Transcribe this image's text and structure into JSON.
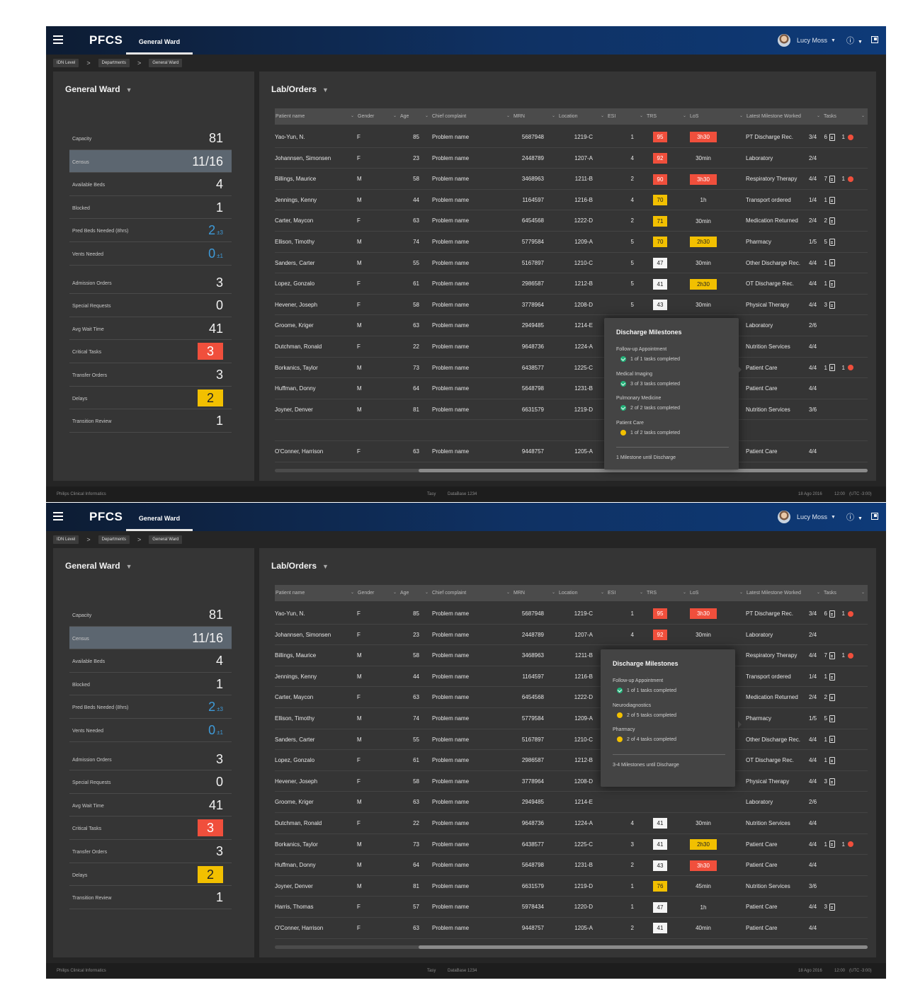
{
  "app": {
    "brand": "PFCS",
    "ward_tab": "General Ward",
    "user": "Lucy Moss",
    "info_glyph": "ⓘ",
    "breadcrumbs": [
      "IDN Level",
      "Departments",
      "General Ward"
    ],
    "left_title": "General Ward",
    "right_title": "Lab/Orders",
    "status": {
      "company": "Philips Clinical Informatics",
      "center_a": "Tasy",
      "center_b": "DataBase 1234",
      "date": "18 Ago 2016",
      "time": "12:00",
      "tz": "(UTC -3:00)"
    },
    "icons": [
      "menu-icon",
      "avatar",
      "info-icon",
      "expand-icon",
      "funnel-icon",
      "chevron-down-icon",
      "clipboard-icon",
      "alert-icon",
      "check-icon"
    ],
    "colors": {
      "red": "#f04f3c",
      "yellow": "#f2c000",
      "blue": "#3e9ad8",
      "green": "#23b37a"
    }
  },
  "kpis": [
    {
      "label": "Capacity",
      "value": "81",
      "style": "plain"
    },
    {
      "label": "Census",
      "value": "11/16",
      "style": "highlight"
    },
    {
      "label": "Available Beds",
      "value": "4",
      "style": "plain"
    },
    {
      "label": "Blocked",
      "value": "1",
      "style": "plain"
    },
    {
      "label": "Pred Beds Needed (8hrs)",
      "value": "2",
      "sub": "±3",
      "style": "blue"
    },
    {
      "label": "Vents Needed",
      "value": "0",
      "sub": "±1",
      "style": "blue"
    },
    {
      "label": "Admission Orders",
      "value": "3",
      "style": "plain",
      "gap": true
    },
    {
      "label": "Special Requests",
      "value": "0",
      "style": "plain"
    },
    {
      "label": "Avg Wait Time",
      "value": "41",
      "style": "plain"
    },
    {
      "label": "Critical Tasks",
      "value": "3",
      "style": "red"
    },
    {
      "label": "Transfer Orders",
      "value": "3",
      "style": "plain"
    },
    {
      "label": "Delays",
      "value": "2",
      "style": "yellow"
    },
    {
      "label": "Transition Review",
      "value": "1",
      "style": "plain"
    }
  ],
  "columns": [
    "Patient name",
    "Gender",
    "Age",
    "Chief complaint",
    "MRN",
    "Location",
    "ESI",
    "TRS",
    "LoS",
    "Latest Milestone Worked",
    "Tasks"
  ],
  "screen1": {
    "rows": [
      {
        "name": "Yao-Yun, N.",
        "gender": "F",
        "age": "85",
        "complaint": "Problem name",
        "mrn": "5687948",
        "loc": "1219-C",
        "esi": "1",
        "trs": "95",
        "trs_c": "red",
        "los": "3h30",
        "los_c": "red",
        "milestone": "PT Discharge Rec.",
        "frac": "3/4",
        "tasks": "6",
        "alert": "1"
      },
      {
        "name": "Johannsen, Simonsen",
        "gender": "F",
        "age": "23",
        "complaint": "Problem name",
        "mrn": "2448789",
        "loc": "1207-A",
        "esi": "4",
        "trs": "92",
        "trs_c": "red",
        "los": "30min",
        "los_c": "",
        "milestone": "Laboratory",
        "frac": "2/4",
        "tasks": "",
        "alert": ""
      },
      {
        "name": "Billings, Maurice",
        "gender": "M",
        "age": "58",
        "complaint": "Problem name",
        "mrn": "3468963",
        "loc": "1211-B",
        "esi": "2",
        "trs": "90",
        "trs_c": "red",
        "los": "3h30",
        "los_c": "red",
        "milestone": "Respiratory Therapy",
        "frac": "4/4",
        "tasks": "7",
        "alert": "1"
      },
      {
        "name": "Jennings, Kenny",
        "gender": "M",
        "age": "44",
        "complaint": "Problem name",
        "mrn": "1164597",
        "loc": "1216-B",
        "esi": "4",
        "trs": "70",
        "trs_c": "yel",
        "los": "1h",
        "los_c": "",
        "milestone": "Transport ordered",
        "frac": "1/4",
        "tasks": "1",
        "alert": ""
      },
      {
        "name": "Carter, Maycon",
        "gender": "F",
        "age": "63",
        "complaint": "Problem name",
        "mrn": "6454568",
        "loc": "1222-D",
        "esi": "2",
        "trs": "71",
        "trs_c": "yel",
        "los": "30min",
        "los_c": "",
        "milestone": "Medication Returned",
        "frac": "2/4",
        "tasks": "2",
        "alert": ""
      },
      {
        "name": "Ellison, Timothy",
        "gender": "M",
        "age": "74",
        "complaint": "Problem name",
        "mrn": "5779584",
        "loc": "1209-A",
        "esi": "5",
        "trs": "70",
        "trs_c": "yel",
        "los": "2h30",
        "los_c": "yel",
        "milestone": "Pharmacy",
        "frac": "1/5",
        "tasks": "5",
        "alert": ""
      },
      {
        "name": "Sanders, Carter",
        "gender": "M",
        "age": "55",
        "complaint": "Problem name",
        "mrn": "5167897",
        "loc": "1210-C",
        "esi": "5",
        "trs": "47",
        "trs_c": "wht",
        "los": "30min",
        "los_c": "",
        "milestone": "Other Discharge Rec.",
        "frac": "4/4",
        "tasks": "1",
        "alert": ""
      },
      {
        "name": "Lopez, Gonzalo",
        "gender": "F",
        "age": "61",
        "complaint": "Problem name",
        "mrn": "2986587",
        "loc": "1212-B",
        "esi": "5",
        "trs": "41",
        "trs_c": "wht",
        "los": "2h30",
        "los_c": "yel",
        "milestone": "OT Discharge Rec.",
        "frac": "4/4",
        "tasks": "1",
        "alert": ""
      },
      {
        "name": "Hevener, Joseph",
        "gender": "F",
        "age": "58",
        "complaint": "Problem name",
        "mrn": "3778964",
        "loc": "1208-D",
        "esi": "5",
        "trs": "43",
        "trs_c": "wht",
        "los": "30min",
        "los_c": "",
        "milestone": "Physical Therapy",
        "frac": "4/4",
        "tasks": "3",
        "alert": ""
      },
      {
        "name": "Groome, Kriger",
        "gender": "M",
        "age": "63",
        "complaint": "Problem name",
        "mrn": "2949485",
        "loc": "1214-E",
        "esi": "",
        "trs": "",
        "trs_c": "",
        "los": "",
        "los_c": "",
        "milestone": "Laboratory",
        "frac": "2/6",
        "tasks": "",
        "alert": ""
      },
      {
        "name": "Dutchman, Ronald",
        "gender": "F",
        "age": "22",
        "complaint": "Problem name",
        "mrn": "9648736",
        "loc": "1224-A",
        "esi": "",
        "trs": "",
        "trs_c": "",
        "los": "",
        "los_c": "",
        "milestone": "Nutrition Services",
        "frac": "4/4",
        "tasks": "",
        "alert": ""
      },
      {
        "name": "Borkanics, Taylor",
        "gender": "M",
        "age": "73",
        "complaint": "Problem name",
        "mrn": "6438577",
        "loc": "1225-C",
        "esi": "",
        "trs": "",
        "trs_c": "",
        "los": "",
        "los_c": "",
        "milestone": "Patient Care",
        "frac": "4/4",
        "tasks": "1",
        "alert": "1"
      },
      {
        "name": "Huffman, Donny",
        "gender": "M",
        "age": "64",
        "complaint": "Problem name",
        "mrn": "5648798",
        "loc": "1231-B",
        "esi": "",
        "trs": "",
        "trs_c": "",
        "los": "",
        "los_c": "",
        "milestone": "Patient Care",
        "frac": "4/4",
        "tasks": "",
        "alert": ""
      },
      {
        "name": "Joyner, Denver",
        "gender": "M",
        "age": "81",
        "complaint": "Problem name",
        "mrn": "6631579",
        "loc": "1219-D",
        "esi": "",
        "trs": "",
        "trs_c": "",
        "los": "",
        "los_c": "",
        "milestone": "Nutrition Services",
        "frac": "3/6",
        "tasks": "",
        "alert": ""
      },
      {
        "name": "",
        "gender": "",
        "age": "",
        "complaint": "",
        "mrn": "",
        "loc": "",
        "esi": "",
        "trs": "",
        "trs_c": "",
        "los": "",
        "los_c": "",
        "milestone": "",
        "frac": "",
        "tasks": "",
        "alert": ""
      },
      {
        "name": "O'Conner, Harrison",
        "gender": "F",
        "age": "63",
        "complaint": "Problem name",
        "mrn": "9448757",
        "loc": "1205-A",
        "esi": "",
        "trs": "",
        "trs_c": "",
        "los": "",
        "los_c": "",
        "milestone": "Patient Care",
        "frac": "4/4",
        "tasks": "",
        "alert": ""
      }
    ],
    "popup": {
      "title": "Discharge Milestones",
      "items": [
        {
          "name": "Follow-up Appointment",
          "status": "1 of 1 tasks completed",
          "state": "done"
        },
        {
          "name": "Medical Imaging",
          "status": "3 of 3 tasks completed",
          "state": "done"
        },
        {
          "name": "Pulmonary Medicine",
          "status": "2 of 2 tasks completed",
          "state": "done"
        },
        {
          "name": "Patient Care",
          "status": "1 of 2 tasks completed",
          "state": "pending"
        }
      ],
      "footer": "1 Milestone until Discharge"
    }
  },
  "screen2": {
    "rows": [
      {
        "name": "Yao-Yun, N.",
        "gender": "F",
        "age": "85",
        "complaint": "Problem name",
        "mrn": "5687948",
        "loc": "1219-C",
        "esi": "1",
        "trs": "95",
        "trs_c": "red",
        "los": "3h30",
        "los_c": "red",
        "milestone": "PT Discharge Rec.",
        "frac": "3/4",
        "tasks": "6",
        "alert": "1"
      },
      {
        "name": "Johannsen, Simonsen",
        "gender": "F",
        "age": "23",
        "complaint": "Problem name",
        "mrn": "2448789",
        "loc": "1207-A",
        "esi": "4",
        "trs": "92",
        "trs_c": "red",
        "los": "30min",
        "los_c": "",
        "milestone": "Laboratory",
        "frac": "2/4",
        "tasks": "",
        "alert": ""
      },
      {
        "name": "Billings, Maurice",
        "gender": "M",
        "age": "58",
        "complaint": "Problem name",
        "mrn": "3468963",
        "loc": "1211-B",
        "esi": "2",
        "trs": "90",
        "trs_c": "red",
        "los": "3h30",
        "los_c": "red",
        "milestone": "Respiratory Therapy",
        "frac": "4/4",
        "tasks": "7",
        "alert": "1"
      },
      {
        "name": "Jennings, Kenny",
        "gender": "M",
        "age": "44",
        "complaint": "Problem name",
        "mrn": "1164597",
        "loc": "1216-B",
        "esi": "",
        "trs": "",
        "trs_c": "",
        "los": "",
        "los_c": "",
        "milestone": "Transport ordered",
        "frac": "1/4",
        "tasks": "1",
        "alert": ""
      },
      {
        "name": "Carter, Maycon",
        "gender": "F",
        "age": "63",
        "complaint": "Problem name",
        "mrn": "6454568",
        "loc": "1222-D",
        "esi": "",
        "trs": "",
        "trs_c": "",
        "los": "",
        "los_c": "",
        "milestone": "Medication Returned",
        "frac": "2/4",
        "tasks": "2",
        "alert": ""
      },
      {
        "name": "Ellison, Timothy",
        "gender": "M",
        "age": "74",
        "complaint": "Problem name",
        "mrn": "5779584",
        "loc": "1209-A",
        "esi": "",
        "trs": "",
        "trs_c": "",
        "los": "",
        "los_c": "",
        "milestone": "Pharmacy",
        "frac": "1/5",
        "tasks": "5",
        "alert": ""
      },
      {
        "name": "Sanders, Carter",
        "gender": "M",
        "age": "55",
        "complaint": "Problem name",
        "mrn": "5167897",
        "loc": "1210-C",
        "esi": "",
        "trs": "",
        "trs_c": "",
        "los": "",
        "los_c": "",
        "milestone": "Other Discharge Rec.",
        "frac": "4/4",
        "tasks": "1",
        "alert": ""
      },
      {
        "name": "Lopez, Gonzalo",
        "gender": "F",
        "age": "61",
        "complaint": "Problem name",
        "mrn": "2986587",
        "loc": "1212-B",
        "esi": "",
        "trs": "",
        "trs_c": "",
        "los": "",
        "los_c": "",
        "milestone": "OT Discharge Rec.",
        "frac": "4/4",
        "tasks": "1",
        "alert": ""
      },
      {
        "name": "Hevener, Joseph",
        "gender": "F",
        "age": "58",
        "complaint": "Problem name",
        "mrn": "3778964",
        "loc": "1208-D",
        "esi": "",
        "trs": "",
        "trs_c": "",
        "los": "",
        "los_c": "",
        "milestone": "Physical Therapy",
        "frac": "4/4",
        "tasks": "3",
        "alert": ""
      },
      {
        "name": "Groome, Kriger",
        "gender": "M",
        "age": "63",
        "complaint": "Problem name",
        "mrn": "2949485",
        "loc": "1214-E",
        "esi": "",
        "trs": "",
        "trs_c": "",
        "los": "",
        "los_c": "",
        "milestone": "Laboratory",
        "frac": "2/6",
        "tasks": "",
        "alert": ""
      },
      {
        "name": "Dutchman, Ronald",
        "gender": "F",
        "age": "22",
        "complaint": "Problem name",
        "mrn": "9648736",
        "loc": "1224-A",
        "esi": "4",
        "trs": "41",
        "trs_c": "wht",
        "los": "30min",
        "los_c": "",
        "milestone": "Nutrition Services",
        "frac": "4/4",
        "tasks": "",
        "alert": ""
      },
      {
        "name": "Borkanics, Taylor",
        "gender": "M",
        "age": "73",
        "complaint": "Problem name",
        "mrn": "6438577",
        "loc": "1225-C",
        "esi": "3",
        "trs": "41",
        "trs_c": "wht",
        "los": "2h30",
        "los_c": "yel",
        "milestone": "Patient Care",
        "frac": "4/4",
        "tasks": "1",
        "alert": "1"
      },
      {
        "name": "Huffman, Donny",
        "gender": "M",
        "age": "64",
        "complaint": "Problem name",
        "mrn": "5648798",
        "loc": "1231-B",
        "esi": "2",
        "trs": "43",
        "trs_c": "wht",
        "los": "3h30",
        "los_c": "red",
        "milestone": "Patient Care",
        "frac": "4/4",
        "tasks": "",
        "alert": ""
      },
      {
        "name": "Joyner, Denver",
        "gender": "M",
        "age": "81",
        "complaint": "Problem name",
        "mrn": "6631579",
        "loc": "1219-D",
        "esi": "1",
        "trs": "76",
        "trs_c": "yel",
        "los": "45min",
        "los_c": "",
        "milestone": "Nutrition Services",
        "frac": "3/6",
        "tasks": "",
        "alert": ""
      },
      {
        "name": "Harris, Thomas",
        "gender": "F",
        "age": "57",
        "complaint": "Problem name",
        "mrn": "5978434",
        "loc": "1220-D",
        "esi": "1",
        "trs": "47",
        "trs_c": "wht",
        "los": "1h",
        "los_c": "",
        "milestone": "Patient Care",
        "frac": "4/4",
        "tasks": "3",
        "alert": ""
      },
      {
        "name": "O'Conner, Harrison",
        "gender": "F",
        "age": "63",
        "complaint": "Problem name",
        "mrn": "9448757",
        "loc": "1205-A",
        "esi": "2",
        "trs": "41",
        "trs_c": "wht",
        "los": "40min",
        "los_c": "",
        "milestone": "Patient Care",
        "frac": "4/4",
        "tasks": "",
        "alert": ""
      }
    ],
    "popup": {
      "title": "Discharge Milestones",
      "items": [
        {
          "name": "Follow-up Appointment",
          "status": "1 of 1 tasks completed",
          "state": "done"
        },
        {
          "name": "Neurodiagnostics",
          "status": "2 of 5 tasks completed",
          "state": "pending"
        },
        {
          "name": "Pharmacy",
          "status": "2 of 4 tasks completed",
          "state": "pending"
        }
      ],
      "footer": "3-4 Milestones until Discharge"
    }
  }
}
